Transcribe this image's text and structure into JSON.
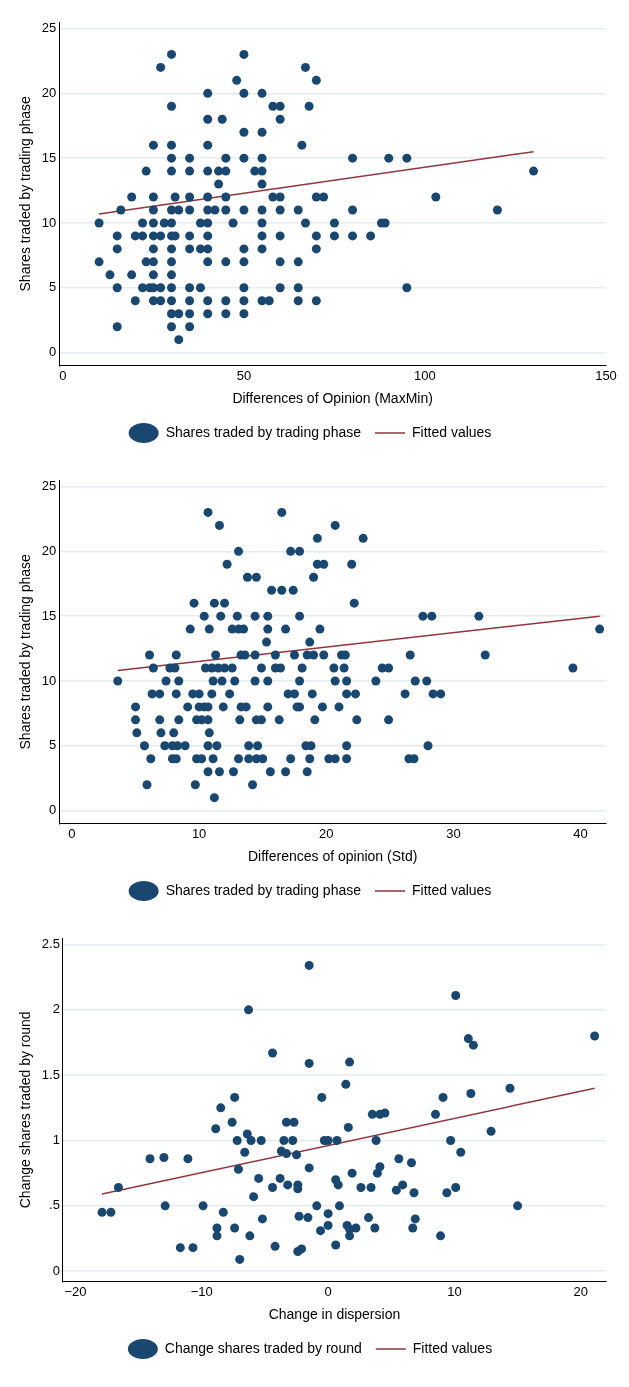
{
  "chart_data": [
    {
      "type": "scatter",
      "xlabel": "Differences of Opinion (MaxMin)",
      "ylabel": "Shares traded by trading phase",
      "xlim": [
        -1,
        150
      ],
      "ylim": [
        -1,
        25.5
      ],
      "xticks": [
        0,
        50,
        100,
        150
      ],
      "yticks": [
        0,
        5,
        10,
        15,
        20,
        25
      ],
      "grid": "y",
      "legend": "bottom",
      "marker": "circle",
      "series": [
        {
          "name": "Shares traded by trading phase",
          "color": "#1a476f",
          "x": [
            30,
            50,
            27,
            67,
            48,
            70,
            40,
            50,
            55,
            30,
            58,
            60,
            68,
            40,
            44,
            60,
            50,
            55,
            25,
            30,
            40,
            66,
            30,
            35,
            45,
            50,
            55,
            80,
            90,
            95,
            23,
            30,
            35,
            40,
            43,
            45,
            53,
            55,
            130,
            43,
            55,
            19,
            25,
            31,
            35,
            40,
            45,
            58,
            60,
            70,
            72,
            103,
            16,
            25,
            30,
            32,
            35,
            40,
            42,
            45,
            50,
            55,
            60,
            65,
            80,
            120,
            10,
            22,
            25,
            28,
            30,
            38,
            40,
            47,
            55,
            67,
            75,
            88,
            89,
            15,
            20,
            22,
            25,
            27,
            30,
            31,
            35,
            40,
            55,
            60,
            70,
            75,
            80,
            85,
            15,
            25,
            30,
            35,
            38,
            40,
            50,
            55,
            70,
            10,
            23,
            25,
            30,
            40,
            45,
            50,
            60,
            65,
            13,
            19,
            25,
            30,
            15,
            22,
            24,
            25,
            27,
            30,
            35,
            38,
            50,
            60,
            65,
            95,
            20,
            25,
            27,
            30,
            35,
            40,
            45,
            50,
            55,
            57,
            65,
            70,
            30,
            32,
            35,
            40,
            45,
            50,
            15,
            30,
            35,
            32
          ],
          "values": [
            23,
            23,
            22,
            22,
            21,
            21,
            20,
            20,
            20,
            19,
            19,
            19,
            19,
            18,
            18,
            18,
            17,
            17,
            16,
            16,
            16,
            16,
            15,
            15,
            15,
            15,
            15,
            15,
            15,
            15,
            14,
            14,
            14,
            14,
            14,
            14,
            14,
            14,
            14,
            13,
            13,
            12,
            12,
            12,
            12,
            12,
            12,
            12,
            12,
            12,
            12,
            12,
            11,
            11,
            11,
            11,
            11,
            11,
            11,
            11,
            11,
            11,
            11,
            11,
            11,
            11,
            10,
            10,
            10,
            10,
            10,
            10,
            10,
            10,
            10,
            10,
            10,
            10,
            10,
            9,
            9,
            9,
            9,
            9,
            9,
            9,
            9,
            9,
            9,
            9,
            9,
            9,
            9,
            9,
            8,
            8,
            8,
            8,
            8,
            8,
            8,
            8,
            8,
            7,
            7,
            7,
            7,
            7,
            7,
            7,
            7,
            7,
            6,
            6,
            6,
            6,
            5,
            5,
            5,
            5,
            5,
            5,
            5,
            5,
            5,
            5,
            5,
            5,
            4,
            4,
            4,
            4,
            4,
            4,
            4,
            4,
            4,
            4,
            4,
            4,
            3,
            3,
            3,
            3,
            3,
            3,
            2,
            2,
            2,
            1
          ]
        },
        {
          "name": "Fitted values",
          "type": "line",
          "color": "#90353b",
          "marker": "none",
          "x": [
            10,
            130
          ],
          "values": [
            10.7,
            15.5
          ]
        }
      ]
    },
    {
      "type": "scatter",
      "xlabel": "Differences of opinion (Std)",
      "ylabel": "Shares traded by trading phase",
      "xlim": [
        -1,
        42
      ],
      "ylim": [
        -1,
        25.5
      ],
      "xticks": [
        0,
        10,
        20,
        30,
        40
      ],
      "yticks": [
        0,
        5,
        10,
        15,
        20,
        25
      ],
      "grid": "y",
      "legend": "bottom",
      "marker": "circle",
      "series": [
        {
          "name": "Shares traded by trading phase",
          "color": "#1a476f",
          "x": [
            10.7,
            16.5,
            11.6,
            20.7,
            19.3,
            22.9,
            13.1,
            17.2,
            17.9,
            12.2,
            19.3,
            19.8,
            22.0,
            13.8,
            14.5,
            19.0,
            15.7,
            16.5,
            17.4,
            9.6,
            11.2,
            12.0,
            22.2,
            10.4,
            11.7,
            13.0,
            14.4,
            15.4,
            17.9,
            27.6,
            28.3,
            32.0,
            9.3,
            10.8,
            12.6,
            13.1,
            13.5,
            15.4,
            16.8,
            19.5,
            41.5,
            15.3,
            18.7,
            6.1,
            8.2,
            11.3,
            13.3,
            13.6,
            14.4,
            16.0,
            17.5,
            18.5,
            19.0,
            19.8,
            21.2,
            21.5,
            26.6,
            32.5,
            6.4,
            7.7,
            8.1,
            10.5,
            11.0,
            11.5,
            12.0,
            12.6,
            14.9,
            16.0,
            16.4,
            18.1,
            20.6,
            21.4,
            24.4,
            24.9,
            39.4,
            3.6,
            7.4,
            8.4,
            11.1,
            11.8,
            12.8,
            14.4,
            15.4,
            17.9,
            20.7,
            21.6,
            23.9,
            27.0,
            27.9,
            6.3,
            6.9,
            8.2,
            9.5,
            10.0,
            11.0,
            12.4,
            17.0,
            17.5,
            18.9,
            21.6,
            22.3,
            26.2,
            28.4,
            29.0,
            5.0,
            9.1,
            10.0,
            10.4,
            10.7,
            11.9,
            13.3,
            13.7,
            15.4,
            17.7,
            17.9,
            19.7,
            21.0,
            5.0,
            6.9,
            8.4,
            9.8,
            10.2,
            10.7,
            13.2,
            14.5,
            14.9,
            16.3,
            19.1,
            22.4,
            24.9,
            5.1,
            7.0,
            8.0,
            10.8,
            5.7,
            7.3,
            7.9,
            8.3,
            8.9,
            10.7,
            11.4,
            13.9,
            14.6,
            18.4,
            18.8,
            21.6,
            28.0,
            6.2,
            7.9,
            8.2,
            9.8,
            10.2,
            11.1,
            13.1,
            13.9,
            14.5,
            15.0,
            17.2,
            18.7,
            20.2,
            20.7,
            21.6,
            26.5,
            26.9,
            10.7,
            11.6,
            12.7,
            15.6,
            16.8,
            18.5,
            5.9,
            9.7,
            14.2,
            11.2
          ],
          "values": [
            23,
            23,
            22,
            22,
            21,
            21,
            20,
            20,
            20,
            19,
            19,
            19,
            19,
            18,
            18,
            18,
            17,
            17,
            17,
            16,
            16,
            16,
            16,
            15,
            15,
            15,
            15,
            15,
            15,
            15,
            15,
            15,
            14,
            14,
            14,
            14,
            14,
            14,
            14,
            14,
            14,
            13,
            13,
            12,
            12,
            12,
            12,
            12,
            12,
            12,
            12,
            12,
            12,
            12,
            12,
            12,
            12,
            12,
            11,
            11,
            11,
            11,
            11,
            11,
            11,
            11,
            11,
            11,
            11,
            11,
            11,
            11,
            11,
            11,
            11,
            10,
            10,
            10,
            10,
            10,
            10,
            10,
            10,
            10,
            10,
            10,
            10,
            10,
            10,
            9,
            9,
            9,
            9,
            9,
            9,
            9,
            9,
            9,
            9,
            9,
            9,
            9,
            9,
            9,
            8,
            8,
            8,
            8,
            8,
            8,
            8,
            8,
            8,
            8,
            8,
            8,
            8,
            7,
            7,
            7,
            7,
            7,
            7,
            7,
            7,
            7,
            7,
            7,
            7,
            7,
            6,
            6,
            6,
            6,
            5,
            5,
            5,
            5,
            5,
            5,
            5,
            5,
            5,
            5,
            5,
            5,
            5,
            4,
            4,
            4,
            4,
            4,
            4,
            4,
            4,
            4,
            4,
            4,
            4,
            4,
            4,
            4,
            4,
            4,
            3,
            3,
            3,
            3,
            3,
            3,
            2,
            2,
            2,
            1
          ]
        },
        {
          "name": "Fitted values",
          "type": "line",
          "color": "#90353b",
          "marker": "none",
          "x": [
            3.6,
            41.5
          ],
          "values": [
            10.8,
            15.0
          ]
        }
      ]
    },
    {
      "type": "scatter",
      "xlabel": "Change in dispersion",
      "ylabel": "Change shares traded by round",
      "xlim": [
        -21,
        22
      ],
      "ylim": [
        -0.08,
        2.55
      ],
      "xticks": [
        {
          "value": -20,
          "label": "−20"
        },
        {
          "value": -10,
          "label": "−10"
        },
        0,
        10,
        20
      ],
      "yticks": [
        0,
        {
          "value": 0.5,
          "label": ".5"
        },
        1,
        1.5,
        2,
        2.5
      ],
      "grid": "y",
      "legend": "bottom",
      "marker": "circle",
      "series": [
        {
          "name": "Change shares traded by round",
          "color": "#1a476f",
          "x": [
            -1.5,
            -6.3,
            -4.4,
            -1.5,
            -7.4,
            -8.5,
            -0.5,
            -7.6,
            -3.3,
            -2.7,
            -8.9,
            -6.4,
            -7.2,
            -6.1,
            -5.3,
            -3.5,
            -2.8,
            -0.3,
            0.0,
            0.7,
            -6.6,
            -3.7,
            -3.3,
            -2.5,
            -14.1,
            -13.0,
            -11.1,
            -16.6,
            -7.1,
            -5.5,
            -3.8,
            -1.5,
            -4.4,
            -3.2,
            -2.4,
            -2.4,
            0.6,
            0.8,
            -5.9,
            -17.9,
            -17.2,
            -12.9,
            -9.9,
            -8.3,
            -5.2,
            -2.3,
            -1.6,
            -0.9,
            0.0,
            0.0,
            -0.6,
            0.9,
            -8.8,
            -8.8,
            -7.4,
            -6.2,
            -11.7,
            -10.7,
            -4.2,
            -2.4,
            -2.1,
            0.6,
            -7.0,
            10.1,
            21.1,
            11.1,
            11.5,
            1.7,
            1.4,
            14.4,
            11.3,
            9.1,
            3.5,
            4.1,
            4.5,
            8.5,
            1.6,
            12.9,
            3.8,
            9.7,
            10.5,
            5.6,
            6.6,
            4.1,
            3.9,
            1.9,
            2.6,
            3.4,
            5.4,
            5.9,
            6.8,
            9.4,
            10.1,
            15.0,
            3.2,
            1.5,
            1.7,
            2.2,
            1.7,
            3.7,
            6.7,
            6.9,
            8.9
          ],
          "values": [
            2.34,
            2.0,
            1.67,
            1.59,
            1.33,
            1.25,
            1.33,
            1.14,
            1.14,
            1.14,
            1.09,
            1.05,
            1.0,
            1.0,
            1.0,
            1.0,
            1.0,
            1.0,
            1.0,
            1.0,
            0.91,
            0.92,
            0.9,
            0.89,
            0.86,
            0.87,
            0.86,
            0.64,
            0.78,
            0.71,
            0.71,
            0.79,
            0.64,
            0.66,
            0.66,
            0.63,
            0.7,
            0.66,
            0.57,
            0.45,
            0.45,
            0.5,
            0.5,
            0.45,
            0.4,
            0.42,
            0.41,
            0.5,
            0.44,
            0.35,
            0.31,
            0.5,
            0.33,
            0.27,
            0.33,
            0.27,
            0.18,
            0.18,
            0.19,
            0.15,
            0.17,
            0.2,
            0.09,
            2.11,
            1.8,
            1.78,
            1.73,
            1.6,
            1.43,
            1.4,
            1.36,
            1.33,
            1.2,
            1.2,
            1.21,
            1.2,
            1.1,
            1.07,
            1.0,
            1.0,
            0.91,
            0.86,
            0.83,
            0.8,
            0.75,
            0.75,
            0.64,
            0.64,
            0.62,
            0.66,
            0.6,
            0.6,
            0.64,
            0.5,
            0.41,
            0.35,
            0.32,
            0.33,
            0.27,
            0.33,
            0.33,
            0.4,
            0.27
          ]
        },
        {
          "name": "Fitted values",
          "type": "line",
          "color": "#90353b",
          "marker": "none",
          "x": [
            -17.9,
            21.1
          ],
          "values": [
            0.59,
            1.4
          ]
        }
      ]
    }
  ]
}
